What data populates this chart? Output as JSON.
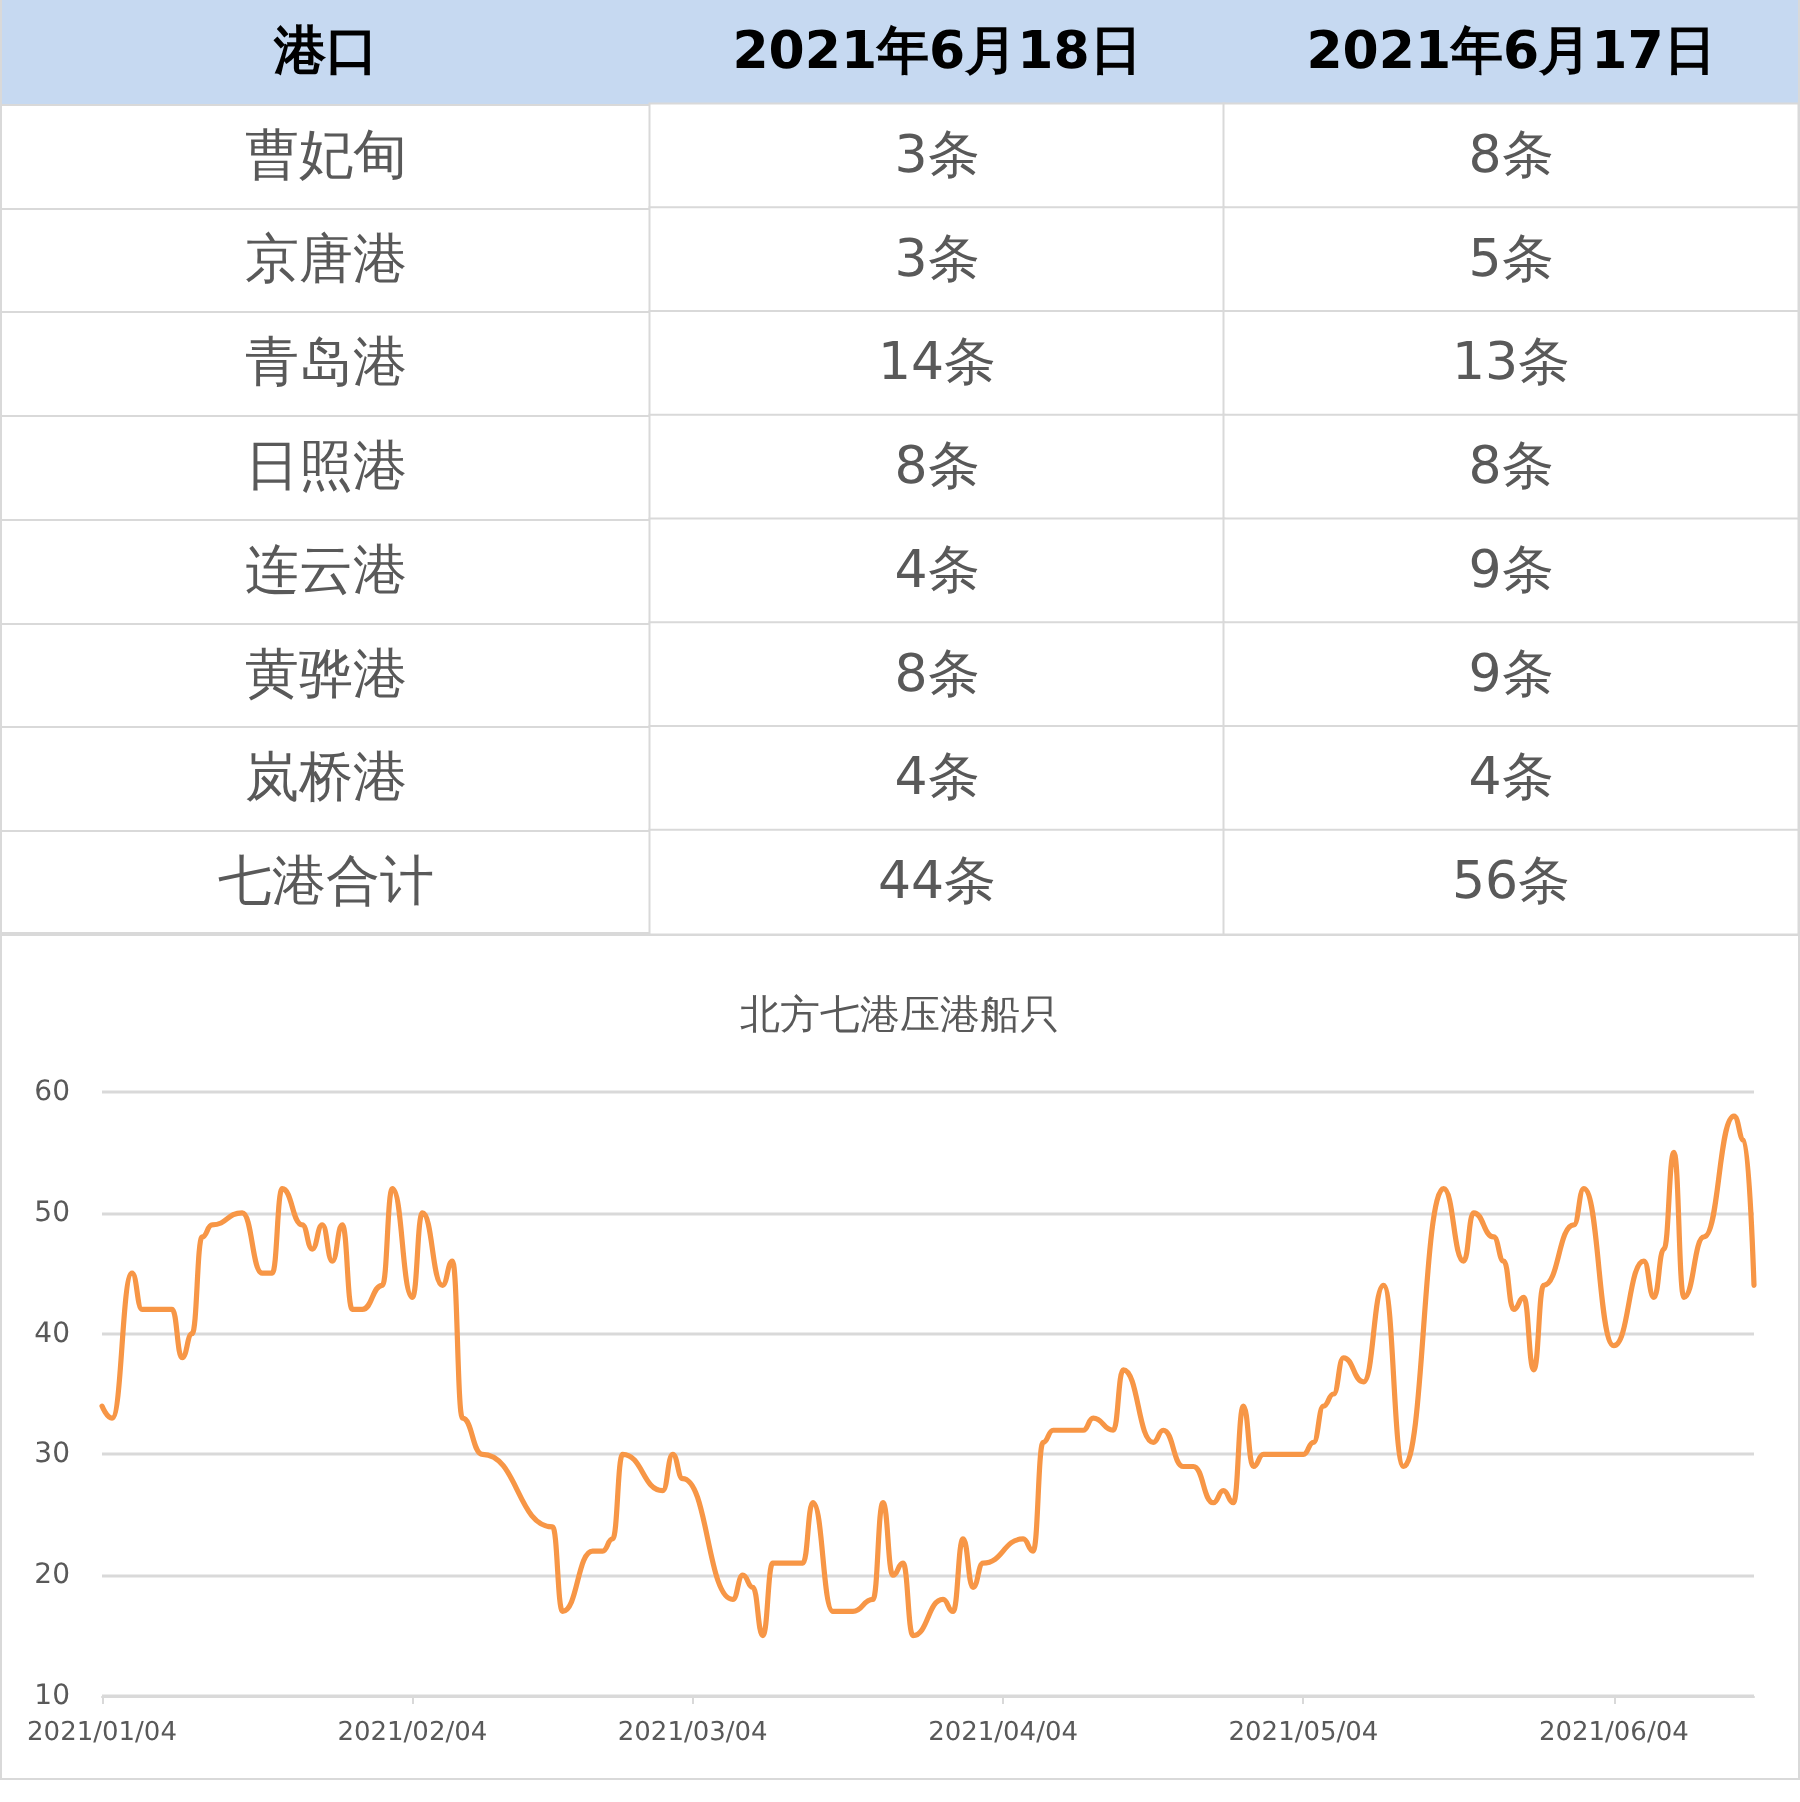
{
  "chart_data": [
    {
      "type": "other",
      "ylabel": "港口",
      "categories": [
        "2021年6月18日",
        "2021年6月17日"
      ],
      "y_categories": [
        "曹妃甸",
        "京唐港",
        "青岛港",
        "日照港",
        "连云港",
        "黄骅港",
        "岚桥港",
        "七港合计"
      ],
      "cell_labels": [
        [
          "3条",
          "8条"
        ],
        [
          "3条",
          "5条"
        ],
        [
          "14条",
          "13条"
        ],
        [
          "8条",
          "8条"
        ],
        [
          "4条",
          "9条"
        ],
        [
          "8条",
          "9条"
        ],
        [
          "4条",
          "4条"
        ],
        [
          "44条",
          "56条"
        ]
      ]
    },
    {
      "type": "line",
      "title": "北方七港压港船只",
      "color": "#f79646",
      "marker": "none",
      "grid": "y",
      "x": [
        "2021-01-04",
        "2021-01-05",
        "2021-01-07",
        "2021-01-08",
        "2021-01-11",
        "2021-01-12",
        "2021-01-13",
        "2021-01-14",
        "2021-01-15",
        "2021-01-18",
        "2021-01-20",
        "2021-01-21",
        "2021-01-22",
        "2021-01-24",
        "2021-01-25",
        "2021-01-26",
        "2021-01-27",
        "2021-01-28",
        "2021-01-29",
        "2021-01-30",
        "2021-02-01",
        "2021-02-02",
        "2021-02-04",
        "2021-02-05",
        "2021-02-07",
        "2021-02-08",
        "2021-02-09",
        "2021-02-11",
        "2021-02-18",
        "2021-02-19",
        "2021-02-22",
        "2021-02-23",
        "2021-02-24",
        "2021-02-25",
        "2021-03-01",
        "2021-03-02",
        "2021-03-03",
        "2021-03-08",
        "2021-03-09",
        "2021-03-10",
        "2021-03-11",
        "2021-03-12",
        "2021-03-15",
        "2021-03-16",
        "2021-03-18",
        "2021-03-20",
        "2021-03-22",
        "2021-03-23",
        "2021-03-24",
        "2021-03-25",
        "2021-03-26",
        "2021-03-29",
        "2021-03-30",
        "2021-03-31",
        "2021-04-01",
        "2021-04-02",
        "2021-04-06",
        "2021-04-07",
        "2021-04-08",
        "2021-04-09",
        "2021-04-12",
        "2021-04-13",
        "2021-04-15",
        "2021-04-16",
        "2021-04-19",
        "2021-04-20",
        "2021-04-22",
        "2021-04-23",
        "2021-04-25",
        "2021-04-26",
        "2021-04-27",
        "2021-04-28",
        "2021-04-29",
        "2021-04-30",
        "2021-05-04",
        "2021-05-05",
        "2021-05-06",
        "2021-05-07",
        "2021-05-08",
        "2021-05-10",
        "2021-05-12",
        "2021-05-14",
        "2021-05-18",
        "2021-05-20",
        "2021-05-21",
        "2021-05-23",
        "2021-05-24",
        "2021-05-25",
        "2021-05-26",
        "2021-05-27",
        "2021-05-28",
        "2021-05-31",
        "2021-06-01",
        "2021-06-04",
        "2021-06-07",
        "2021-06-08",
        "2021-06-09",
        "2021-06-10",
        "2021-06-11",
        "2021-06-13",
        "2021-06-16",
        "2021-06-17",
        "2021-06-18"
      ],
      "values": [
        34,
        33,
        45,
        42,
        42,
        38,
        40,
        48,
        49,
        50,
        45,
        45,
        52,
        49,
        47,
        49,
        46,
        49,
        42,
        42,
        44,
        52,
        43,
        50,
        44,
        46,
        33,
        30,
        24,
        17,
        22,
        22,
        23,
        30,
        27,
        30,
        28,
        18,
        20,
        19,
        15,
        21,
        21,
        26,
        17,
        17,
        18,
        26,
        20,
        21,
        15,
        18,
        17,
        23,
        19,
        21,
        23,
        22,
        31,
        32,
        32,
        33,
        32,
        37,
        31,
        32,
        29,
        29,
        26,
        27,
        26,
        34,
        29,
        30,
        30,
        31,
        34,
        35,
        38,
        36,
        44,
        29,
        52,
        46,
        50,
        48,
        46,
        42,
        43,
        37,
        44,
        49,
        52,
        39,
        46,
        43,
        47,
        55,
        43,
        48,
        58,
        56,
        44
      ],
      "xlim": [
        "2021-01-04",
        "2021-06-18"
      ],
      "xticks": [
        {
          "value": "2021-01-04",
          "label": "2021/01/04"
        },
        {
          "value": "2021-02-04",
          "label": "2021/02/04"
        },
        {
          "value": "2021-03-04",
          "label": "2021/03/04"
        },
        {
          "value": "2021-04-04",
          "label": "2021/04/04"
        },
        {
          "value": "2021-05-04",
          "label": "2021/05/04"
        },
        {
          "value": "2021-06-04",
          "label": "2021/06/04"
        }
      ],
      "ylim": [
        10,
        60
      ],
      "yticks": [
        10,
        20,
        30,
        40,
        50,
        60
      ]
    }
  ]
}
